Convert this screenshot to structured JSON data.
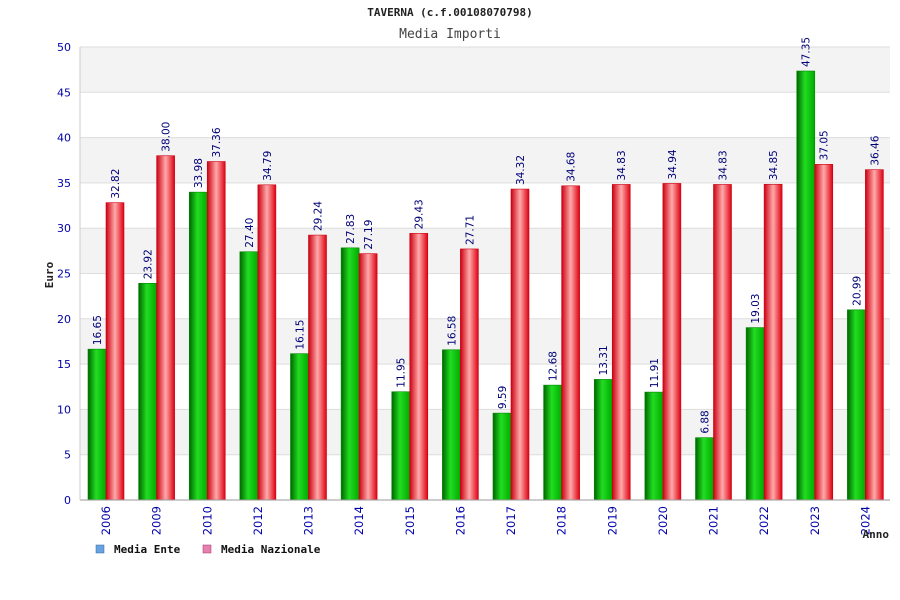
{
  "chart_data": {
    "type": "bar",
    "title": "TAVERNA (c.f.00108070798)",
    "subtitle": "Media Importi",
    "xlabel": "Anno",
    "ylabel": "Euro",
    "ylim": [
      0,
      50
    ],
    "yticks": [
      0,
      5,
      10,
      15,
      20,
      25,
      30,
      35,
      40,
      45,
      50
    ],
    "grid": true,
    "legend_placement": "bottom-left",
    "categories": [
      "2006",
      "2009",
      "2010",
      "2012",
      "2013",
      "2014",
      "2015",
      "2016",
      "2017",
      "2018",
      "2019",
      "2020",
      "2021",
      "2022",
      "2023",
      "2024"
    ],
    "series": [
      {
        "name": "Media Ente",
        "color": "#00bb00",
        "legend_color": "#66a3e0",
        "values": [
          16.65,
          23.92,
          33.98,
          27.4,
          16.15,
          27.83,
          11.95,
          16.58,
          9.59,
          12.68,
          13.31,
          11.91,
          6.88,
          19.03,
          47.35,
          20.99
        ],
        "labels": [
          "16.65",
          "23.92",
          "33.98",
          "27.40",
          "16.15",
          "27.83",
          "11.95",
          "16.58",
          "9.59",
          "12.68",
          "13.31",
          "11.91",
          "6.88",
          "19.03",
          "47.35",
          "20.99"
        ]
      },
      {
        "name": "Media Nazionale",
        "color": "#ee1122",
        "legend_color": "#e87fb0",
        "values": [
          32.82,
          38.0,
          37.36,
          34.79,
          29.24,
          27.19,
          29.43,
          27.71,
          34.32,
          34.68,
          34.83,
          34.94,
          34.83,
          34.85,
          37.05,
          36.46
        ],
        "labels": [
          "32.82",
          "38.00",
          "37.36",
          "34.79",
          "29.24",
          "27.19",
          "29.43",
          "27.71",
          "34.32",
          "34.68",
          "34.83",
          "34.94",
          "34.83",
          "34.85",
          "37.05",
          "36.46"
        ]
      }
    ]
  }
}
